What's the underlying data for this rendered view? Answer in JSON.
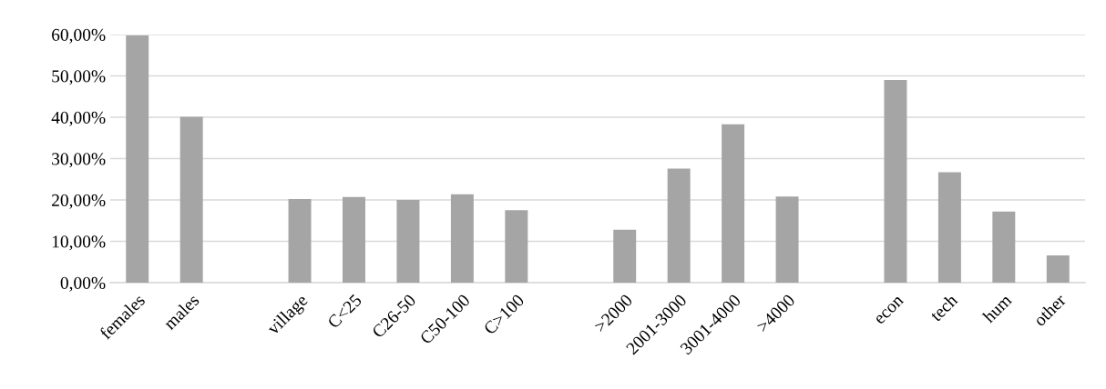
{
  "chart_data": {
    "type": "bar",
    "categories": [
      "females",
      "males",
      null,
      "village",
      "C<25",
      "C26-50",
      "C50-100",
      "C>100",
      null,
      ">2000",
      "2001-3000",
      "3001-4000",
      ">4000",
      null,
      "econ",
      "tech",
      "hum",
      "other"
    ],
    "values": [
      59.8,
      40.1,
      null,
      20.2,
      20.7,
      20.0,
      21.4,
      17.5,
      null,
      12.8,
      27.6,
      38.3,
      20.8,
      null,
      49.0,
      26.7,
      17.2,
      6.6
    ],
    "color": "#a5a5a5",
    "ylim": [
      0,
      60
    ],
    "yticks": [
      {
        "value": 0,
        "label": "0,00%"
      },
      {
        "value": 10,
        "label": "10,00%"
      },
      {
        "value": 20,
        "label": "20,00%"
      },
      {
        "value": 30,
        "label": "30,00%"
      },
      {
        "value": 40,
        "label": "40,00%"
      },
      {
        "value": 50,
        "label": "50,00%"
      },
      {
        "value": 60,
        "label": "60,00%"
      }
    ],
    "grid": "y",
    "legend": false
  }
}
